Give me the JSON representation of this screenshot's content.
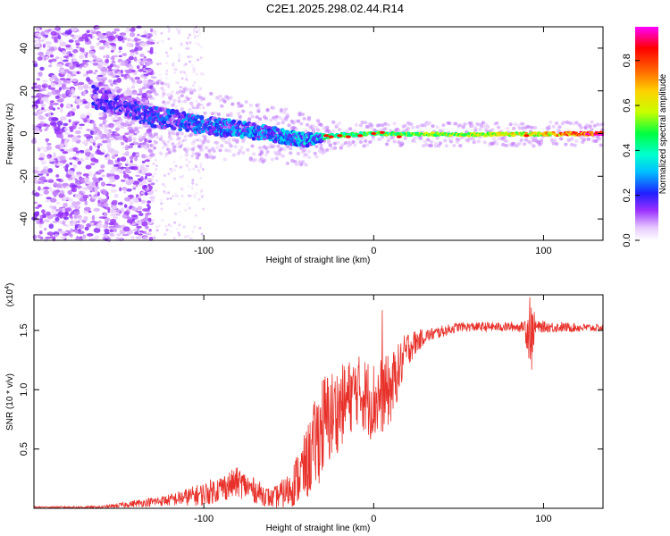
{
  "title": "C2E1.2025.298.02.44.R14",
  "colors": {
    "snr_line": "#e8312a",
    "background": "#ffffff",
    "colormap": [
      "#ffffff",
      "#e8c8ff",
      "#8a2be2",
      "#0000ff",
      "#00ffff",
      "#00ff7f",
      "#adff2f",
      "#ffff00",
      "#ff8c00",
      "#ff0000",
      "#ff00ff"
    ]
  },
  "chart_data": [
    {
      "type": "heatmap",
      "name": "spectrogram",
      "xlabel": "Height of straight line (km)",
      "ylabel": "Frequency (Hz)",
      "xlim": [
        -200,
        135
      ],
      "ylim": [
        -50,
        50
      ],
      "x_ticks": [
        -100,
        0,
        100
      ],
      "y_ticks": [
        -40,
        -20,
        0,
        20,
        40
      ],
      "x_tick_labels": [
        "-100",
        "0",
        "100"
      ],
      "y_tick_labels": [
        "-40",
        "-20",
        "0",
        "20",
        "40"
      ],
      "colorbar": {
        "label": "Normalized spectral amplitude",
        "range": [
          0,
          0.95
        ],
        "ticks": [
          0.0,
          0.2,
          0.4,
          0.6,
          0.8
        ],
        "tick_labels": [
          "0.0",
          "0.2",
          "0.4",
          "0.6",
          "0.8"
        ]
      },
      "ridge": {
        "description_points": [
          {
            "x": -160,
            "center_hz": 16,
            "width_hz": 10
          },
          {
            "x": -130,
            "center_hz": 8,
            "width_hz": 9
          },
          {
            "x": -100,
            "center_hz": 4,
            "width_hz": 8
          },
          {
            "x": -70,
            "center_hz": 1,
            "width_hz": 7
          },
          {
            "x": -40,
            "center_hz": -3,
            "width_hz": 6
          },
          {
            "x": -25,
            "center_hz": -1,
            "width_hz": 2
          },
          {
            "x": 0,
            "center_hz": 0,
            "width_hz": 1.5
          },
          {
            "x": 50,
            "center_hz": -0.5,
            "width_hz": 1.5
          },
          {
            "x": 135,
            "center_hz": 0,
            "width_hz": 1.5
          }
        ]
      }
    },
    {
      "type": "line",
      "name": "snr",
      "xlabel": "Height of straight line (km)",
      "ylabel": "SNR (10 * v/v)",
      "y_multiplier_label": "(x10",
      "y_multiplier_exp": "4",
      "y_multiplier_close": ")",
      "xlim": [
        -200,
        135
      ],
      "ylim": [
        0,
        1.8
      ],
      "x_ticks": [
        -100,
        0,
        100
      ],
      "y_ticks": [
        0.5,
        1.0,
        1.5
      ],
      "x_tick_labels": [
        "-100",
        "0",
        "100"
      ],
      "y_tick_labels": [
        "0.5",
        "1.0",
        "1.5"
      ],
      "envelope": [
        {
          "x": -200,
          "y": 0.01,
          "noise": 0.005
        },
        {
          "x": -160,
          "y": 0.01,
          "noise": 0.01
        },
        {
          "x": -140,
          "y": 0.04,
          "noise": 0.03
        },
        {
          "x": -120,
          "y": 0.07,
          "noise": 0.05
        },
        {
          "x": -100,
          "y": 0.12,
          "noise": 0.1
        },
        {
          "x": -80,
          "y": 0.22,
          "noise": 0.13
        },
        {
          "x": -60,
          "y": 0.08,
          "noise": 0.08
        },
        {
          "x": -50,
          "y": 0.15,
          "noise": 0.15
        },
        {
          "x": -40,
          "y": 0.35,
          "noise": 0.3
        },
        {
          "x": -30,
          "y": 0.7,
          "noise": 0.45
        },
        {
          "x": -20,
          "y": 0.85,
          "noise": 0.35
        },
        {
          "x": -10,
          "y": 1.0,
          "noise": 0.3
        },
        {
          "x": 0,
          "y": 0.9,
          "noise": 0.35
        },
        {
          "x": 10,
          "y": 1.0,
          "noise": 0.3
        },
        {
          "x": 20,
          "y": 1.35,
          "noise": 0.15
        },
        {
          "x": 30,
          "y": 1.45,
          "noise": 0.06
        },
        {
          "x": 50,
          "y": 1.53,
          "noise": 0.04
        },
        {
          "x": 88,
          "y": 1.53,
          "noise": 0.04
        },
        {
          "x": 92,
          "y": 1.5,
          "noise": 0.3
        },
        {
          "x": 96,
          "y": 1.53,
          "noise": 0.05
        },
        {
          "x": 135,
          "y": 1.52,
          "noise": 0.03
        }
      ],
      "peaks": [
        {
          "x": 5,
          "y": 1.67
        },
        {
          "x": 92,
          "y": 1.78
        },
        {
          "x": 93,
          "y": 1.17
        }
      ]
    }
  ]
}
